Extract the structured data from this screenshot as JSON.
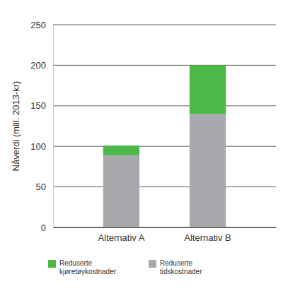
{
  "chart_data": {
    "type": "bar",
    "stacked": true,
    "y_label": "Nåverdi (mill. 2013-kr)",
    "categories": [
      "Alternativ A",
      "Alternativ B"
    ],
    "series": [
      {
        "name": "Reduserte tidskostnader",
        "color": "#a7a9ac",
        "values": [
          89,
          140
        ]
      },
      {
        "name": "Reduserte kjøretøykostnader",
        "color": "#4cb848",
        "values": [
          12,
          60
        ]
      }
    ],
    "ylim": [
      0,
      250
    ],
    "yticks": [
      0,
      50,
      100,
      150,
      200,
      250
    ],
    "grid": true,
    "legend": "bottom"
  }
}
